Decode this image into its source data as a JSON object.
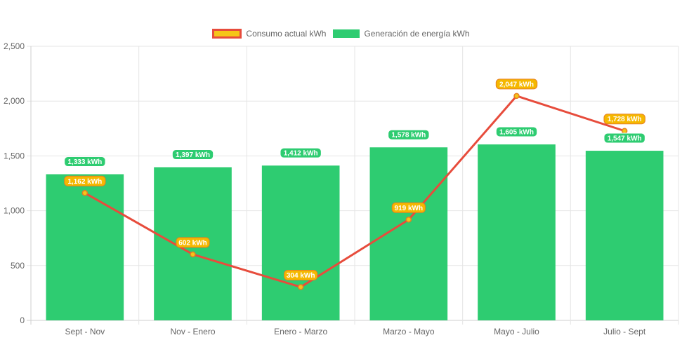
{
  "chart_data": {
    "type": "bar",
    "categories": [
      "Sept - Nov",
      "Nov - Enero",
      "Enero - Marzo",
      "Marzo - Mayo",
      "Mayo - Julio",
      "Julio - Sept"
    ],
    "series": [
      {
        "name": "Consumo actual kWh",
        "kind": "line",
        "values": [
          1162,
          602,
          304,
          919,
          2047,
          1728
        ],
        "color": "#e74c3c",
        "point_color": "#f5c518"
      },
      {
        "name": "Generación de energía kWh",
        "kind": "bar",
        "values": [
          1333,
          1397,
          1412,
          1578,
          1605,
          1547
        ],
        "color": "#2ecc71"
      }
    ],
    "data_labels": {
      "line": [
        "1,162 kWh",
        "602 kWh",
        "304 kWh",
        "919 kWh",
        "2,047 kWh",
        "1,728 kWh"
      ],
      "bar": [
        "1,333 kWh",
        "1,397 kWh",
        "1,412 kWh",
        "1,578 kWh",
        "1,605 kWh",
        "1,547 kWh"
      ]
    },
    "yticks": [
      "0",
      "500",
      "1,000",
      "1,500",
      "2,000",
      "2,500"
    ],
    "ylim": [
      0,
      2500
    ],
    "grid": true,
    "legend_position": "top",
    "title": "",
    "xlabel": "",
    "ylabel": ""
  }
}
